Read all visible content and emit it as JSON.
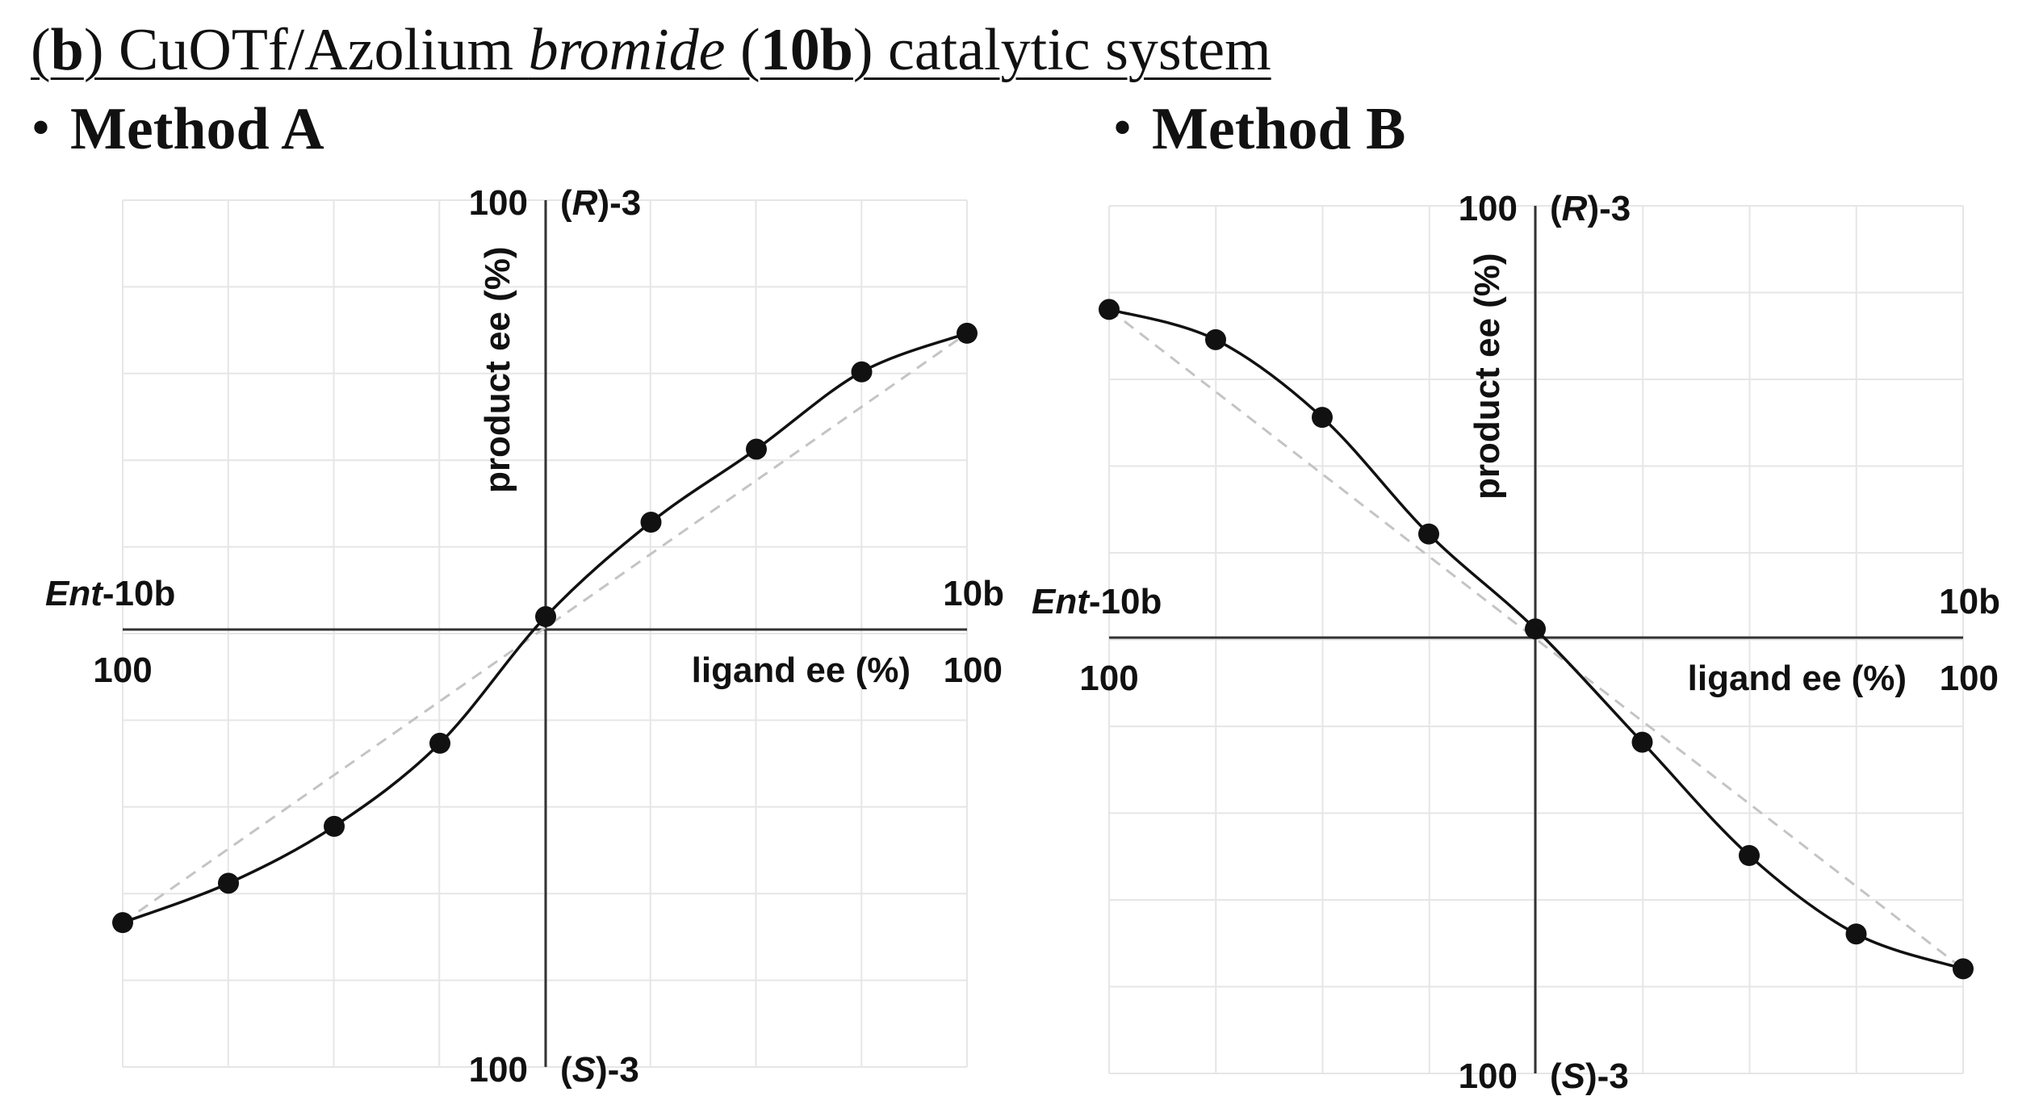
{
  "heading": {
    "part_open": "(",
    "part_b": "b",
    "part_mid": ") CuOTf/Azolium ",
    "part_italic": "bromide",
    "part_paren_open": " (",
    "part_bold": "10b",
    "part_end": ") catalytic system"
  },
  "chart_data": [
    {
      "type": "scatter",
      "title": "Method A",
      "bullet": "•",
      "xlabel": "ligand ee (%)",
      "ylabel": "product ee (%)",
      "x_left_label": "Ent-10b",
      "x_left_label_italic": "Ent",
      "x_left_label_rest": "-10b",
      "x_right_label": "10b",
      "x_left_tick": "100",
      "x_right_tick": "100",
      "y_top_tick": "100",
      "y_bottom_tick": "100",
      "y_top_label_open": "(",
      "y_top_label_italic": "R",
      "y_top_label_rest": ")-3",
      "y_bottom_label_open": "(",
      "y_bottom_label_italic": "S",
      "y_bottom_label_rest": ")-3",
      "xlim": [
        -100,
        100
      ],
      "ylim": [
        -100,
        100
      ],
      "grid": true,
      "series": [
        {
          "x": [
            -100,
            -75,
            -50,
            -25,
            0,
            25,
            50,
            75,
            100
          ],
          "y": [
            -67,
            -58,
            -45,
            -26,
            3,
            25,
            42,
            60,
            69
          ]
        }
      ],
      "reference_line": [
        [
          -100,
          -67
        ],
        [
          100,
          69
        ]
      ]
    },
    {
      "type": "scatter",
      "title": "Method B",
      "bullet": "•",
      "xlabel": "ligand ee (%)",
      "ylabel": "product ee (%)",
      "x_left_label": "Ent-10b",
      "x_left_label_italic": "Ent",
      "x_left_label_rest": "-10b",
      "x_right_label": "10b",
      "x_left_tick": "100",
      "x_right_tick": "100",
      "y_top_tick": "100",
      "y_bottom_tick": "100",
      "y_top_label_open": "(",
      "y_top_label_italic": "R",
      "y_top_label_rest": ")-3",
      "y_bottom_label_open": "(",
      "y_bottom_label_italic": "S",
      "y_bottom_label_rest": ")-3",
      "xlim": [
        -100,
        100
      ],
      "ylim": [
        -100,
        100
      ],
      "grid": true,
      "series": [
        {
          "x": [
            -100,
            -75,
            -50,
            -25,
            0,
            25,
            50,
            75,
            100
          ],
          "y": [
            76,
            69,
            51,
            24,
            2,
            -24,
            -50,
            -68,
            -76
          ]
        }
      ],
      "reference_line": [
        [
          -100,
          76
        ],
        [
          100,
          -76
        ]
      ]
    }
  ]
}
